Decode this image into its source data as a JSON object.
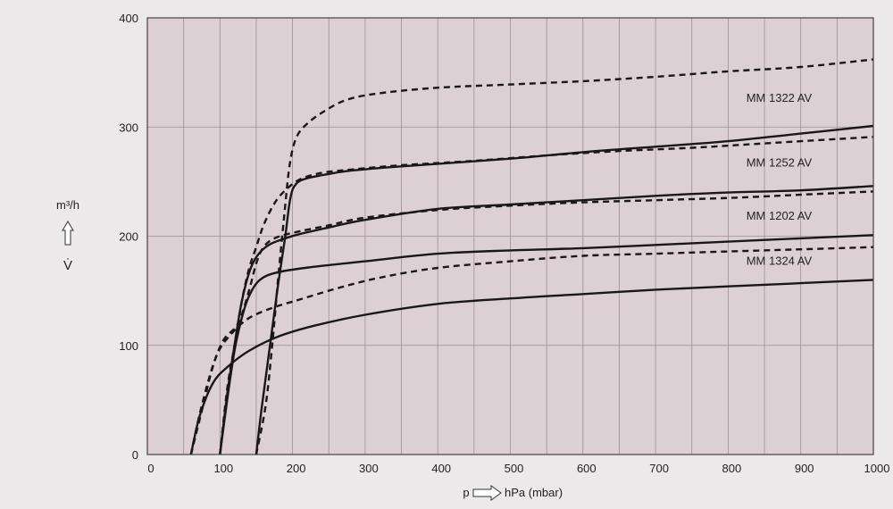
{
  "colors": {
    "page_background": "#ebe9ea",
    "plot_background": "#ddd0d4",
    "grid": "#9c9094",
    "frame": "#4a4042",
    "curve": "#1a1718"
  },
  "axes": {
    "y_unit_label": "m³/h",
    "y_symbol": "V̇",
    "x_prefix": "p",
    "x_unit_label": "hPa (mbar)"
  },
  "chart_data": {
    "type": "line",
    "title": "",
    "xlabel": "p hPa (mbar)",
    "ylabel": "m³/h V̇",
    "xlim": [
      0,
      1000
    ],
    "ylim": [
      0,
      400
    ],
    "x_ticks": [
      0,
      100,
      200,
      300,
      400,
      500,
      600,
      700,
      800,
      900,
      1000
    ],
    "y_ticks": [
      0,
      100,
      200,
      300,
      400
    ],
    "grid": true,
    "legend": "inline labels at right",
    "labels": [
      {
        "text": "MM 1322 AV",
        "x": 825,
        "y": 323
      },
      {
        "text": "MM 1252 AV",
        "x": 825,
        "y": 264
      },
      {
        "text": "MM 1202 AV",
        "x": 825,
        "y": 215
      },
      {
        "text": "MM 1324 AV",
        "x": 825,
        "y": 174
      }
    ],
    "series": [
      {
        "style": "dashed",
        "points": [
          [
            150,
            0
          ],
          [
            163,
            45
          ],
          [
            172,
            100
          ],
          [
            180,
            160
          ],
          [
            188,
            215
          ],
          [
            196,
            265
          ],
          [
            205,
            290
          ],
          [
            220,
            303
          ],
          [
            245,
            315
          ],
          [
            275,
            325
          ],
          [
            320,
            331
          ],
          [
            400,
            336
          ],
          [
            500,
            339
          ],
          [
            600,
            342
          ],
          [
            700,
            346
          ],
          [
            800,
            351
          ],
          [
            900,
            355
          ],
          [
            1000,
            362
          ]
        ]
      },
      {
        "style": "solid",
        "points": [
          [
            150,
            0
          ],
          [
            157,
            40
          ],
          [
            165,
            80
          ],
          [
            173,
            120
          ],
          [
            181,
            160
          ],
          [
            190,
            200
          ],
          [
            197,
            235
          ],
          [
            205,
            248
          ],
          [
            220,
            253
          ],
          [
            250,
            257
          ],
          [
            280,
            260
          ],
          [
            350,
            264
          ],
          [
            500,
            271
          ],
          [
            600,
            277
          ],
          [
            700,
            282
          ],
          [
            800,
            287
          ],
          [
            900,
            294
          ],
          [
            1000,
            301
          ]
        ]
      },
      {
        "style": "dashed",
        "points": [
          [
            100,
            0
          ],
          [
            110,
            60
          ],
          [
            120,
            100
          ],
          [
            130,
            140
          ],
          [
            140,
            170
          ],
          [
            150,
            190
          ],
          [
            160,
            210
          ],
          [
            175,
            230
          ],
          [
            190,
            242
          ],
          [
            210,
            252
          ],
          [
            240,
            258
          ],
          [
            280,
            261
          ],
          [
            350,
            265
          ],
          [
            450,
            269
          ],
          [
            550,
            274
          ],
          [
            650,
            278
          ],
          [
            750,
            281
          ],
          [
            850,
            285
          ],
          [
            1000,
            291
          ]
        ]
      },
      {
        "style": "solid",
        "points": [
          [
            100,
            0
          ],
          [
            110,
            55
          ],
          [
            120,
            100
          ],
          [
            130,
            140
          ],
          [
            142,
            170
          ],
          [
            155,
            185
          ],
          [
            170,
            193
          ],
          [
            190,
            198
          ],
          [
            210,
            202
          ],
          [
            250,
            208
          ],
          [
            300,
            215
          ],
          [
            400,
            225
          ],
          [
            500,
            229
          ],
          [
            600,
            233
          ],
          [
            700,
            237
          ],
          [
            800,
            240
          ],
          [
            900,
            242
          ],
          [
            1000,
            246
          ]
        ]
      },
      {
        "style": "dashed",
        "points": [
          [
            60,
            0
          ],
          [
            75,
            40
          ],
          [
            90,
            80
          ],
          [
            105,
            105
          ],
          [
            125,
            120
          ],
          [
            140,
            150
          ],
          [
            150,
            175
          ],
          [
            160,
            190
          ],
          [
            175,
            198
          ],
          [
            200,
            203
          ],
          [
            250,
            210
          ],
          [
            300,
            217
          ],
          [
            400,
            224
          ],
          [
            500,
            228
          ],
          [
            600,
            231
          ],
          [
            700,
            233
          ],
          [
            800,
            235
          ],
          [
            900,
            238
          ],
          [
            1000,
            241
          ]
        ]
      },
      {
        "style": "solid",
        "points": [
          [
            100,
            0
          ],
          [
            110,
            50
          ],
          [
            120,
            95
          ],
          [
            130,
            125
          ],
          [
            140,
            145
          ],
          [
            155,
            160
          ],
          [
            180,
            167
          ],
          [
            230,
            172
          ],
          [
            300,
            177
          ],
          [
            400,
            184
          ],
          [
            500,
            187
          ],
          [
            600,
            189
          ],
          [
            700,
            192
          ],
          [
            800,
            195
          ],
          [
            900,
            198
          ],
          [
            1000,
            201
          ]
        ]
      },
      {
        "style": "dashed",
        "points": [
          [
            60,
            0
          ],
          [
            75,
            45
          ],
          [
            95,
            90
          ],
          [
            115,
            110
          ],
          [
            140,
            125
          ],
          [
            175,
            135
          ],
          [
            210,
            142
          ],
          [
            260,
            152
          ],
          [
            320,
            162
          ],
          [
            400,
            171
          ],
          [
            500,
            177
          ],
          [
            600,
            182
          ],
          [
            700,
            184
          ],
          [
            800,
            186
          ],
          [
            900,
            188
          ],
          [
            1000,
            190
          ]
        ]
      },
      {
        "style": "solid",
        "points": [
          [
            60,
            0
          ],
          [
            72,
            35
          ],
          [
            90,
            65
          ],
          [
            110,
            80
          ],
          [
            140,
            95
          ],
          [
            180,
            108
          ],
          [
            230,
            118
          ],
          [
            300,
            128
          ],
          [
            400,
            138
          ],
          [
            500,
            143
          ],
          [
            600,
            147
          ],
          [
            700,
            151
          ],
          [
            800,
            154
          ],
          [
            900,
            157
          ],
          [
            1000,
            160
          ]
        ]
      }
    ]
  }
}
